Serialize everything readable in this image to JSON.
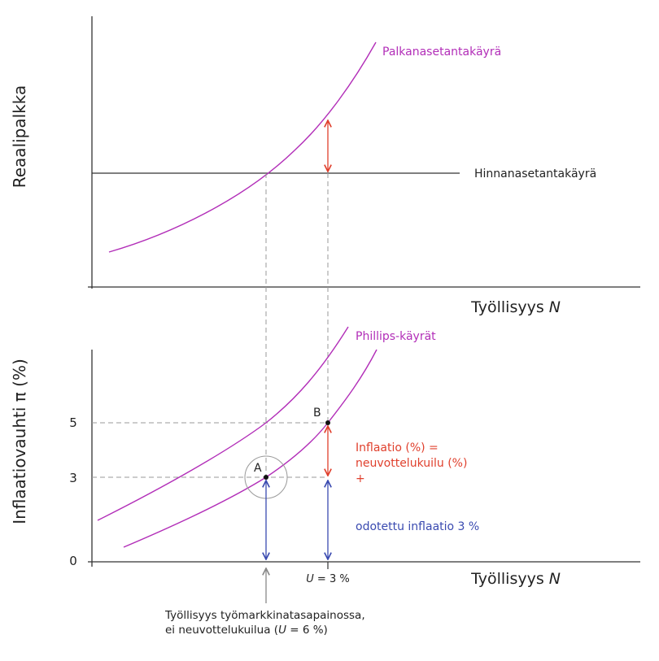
{
  "top": {
    "y_label": "Reaalipalkka",
    "x_label": "Työllisyys",
    "x_label_var": "N",
    "wage_curve_label": "Palkanasetantakäyrä",
    "price_curve_label": "Hinnanasetantakäyrä"
  },
  "bottom": {
    "y_label": "Inflaatiovauhti π (%)",
    "x_label": "Työllisyys",
    "x_label_var": "N",
    "phillips_label": "Phillips-käyrät",
    "point_a": "A",
    "point_b": "B",
    "y_ticks": [
      "5",
      "3",
      "0"
    ],
    "u_tick_var": "U",
    "u_tick_value": " = 3 %",
    "inflation_line1": "Inflaatio (%) =",
    "inflation_line2": "neuvottelukuilu (%)",
    "inflation_line3": "+",
    "expected_inflation": "odotettu inflaatio 3 %",
    "equilibrium_line1": "Työllisyys työmarkkinatasapainossa,",
    "equilibrium_line2_pre": "ei neuvottelukuilua (",
    "equilibrium_line2_var": "U",
    "equilibrium_line2_post": " = 6 %)"
  },
  "colors": {
    "curve": "#b22eb8",
    "axis": "#333333",
    "dashed": "#999999",
    "red": "#e0402d",
    "blue": "#3a4ab0",
    "text": "#222222"
  }
}
